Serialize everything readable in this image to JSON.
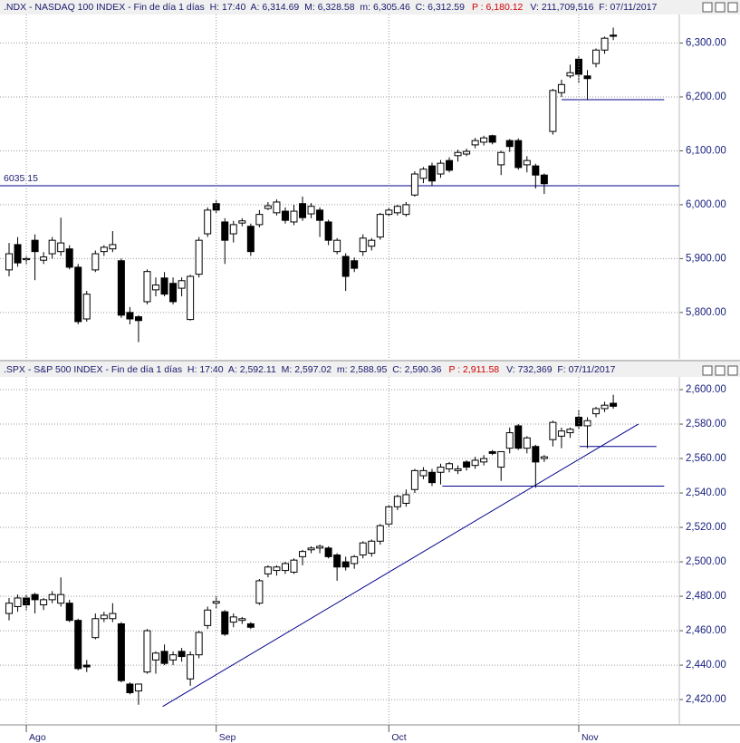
{
  "chart_data": [
    {
      "type": "candlestick",
      "header": {
        "left": ".NDX - NASDAQ 100 INDEX - Fin de día 1 días  H: 17:40  A: 6,314.69  M: 6,328.58  m: 6,305.46  C: 6,312.59",
        "prev": "P : 6,180.12",
        "right": "V: 211,709,516  F: 07/11/2017"
      },
      "ohlc": [
        [
          5879,
          5929,
          5867,
          5909
        ],
        [
          5926,
          5940,
          5885,
          5892
        ],
        [
          5898,
          5905,
          5890,
          5900
        ],
        [
          5934,
          5945,
          5860,
          5913
        ],
        [
          5897,
          5912,
          5890,
          5903
        ],
        [
          5909,
          5940,
          5900,
          5934
        ],
        [
          5913,
          5976,
          5905,
          5929
        ],
        [
          5918,
          5925,
          5880,
          5884
        ],
        [
          5884,
          5890,
          5778,
          5783
        ],
        [
          5788,
          5840,
          5783,
          5834
        ],
        [
          5879,
          5915,
          5875,
          5909
        ],
        [
          5913,
          5925,
          5905,
          5921
        ],
        [
          5918,
          5951,
          5912,
          5926
        ],
        [
          5896,
          5900,
          5790,
          5795
        ],
        [
          5800,
          5810,
          5778,
          5788
        ],
        [
          5792,
          5795,
          5745,
          5785
        ],
        [
          5820,
          5880,
          5815,
          5876
        ],
        [
          5842,
          5865,
          5830,
          5851
        ],
        [
          5864,
          5875,
          5830,
          5834
        ],
        [
          5854,
          5865,
          5815,
          5820
        ],
        [
          5845,
          5865,
          5830,
          5859
        ],
        [
          5787,
          5870,
          5785,
          5867
        ],
        [
          5871,
          5940,
          5865,
          5934
        ],
        [
          5946,
          5995,
          5940,
          5990
        ],
        [
          6002,
          6008,
          5985,
          5990
        ],
        [
          5968,
          5975,
          5890,
          5934
        ],
        [
          5946,
          5970,
          5930,
          5963
        ],
        [
          5966,
          5975,
          5960,
          5970
        ],
        [
          5960,
          5965,
          5905,
          5913
        ],
        [
          5963,
          5990,
          5958,
          5982
        ],
        [
          5993,
          6005,
          5990,
          5998
        ],
        [
          5985,
          6010,
          5980,
          6005
        ],
        [
          5988,
          5995,
          5965,
          5971
        ],
        [
          5968,
          6000,
          5962,
          5988
        ],
        [
          6002,
          6015,
          5970,
          5976
        ],
        [
          5983,
          6003,
          5975,
          5997
        ],
        [
          5990,
          5995,
          5940,
          5971
        ],
        [
          5968,
          5972,
          5925,
          5934
        ],
        [
          5913,
          5938,
          5908,
          5934
        ],
        [
          5904,
          5910,
          5840,
          5867
        ],
        [
          5896,
          5902,
          5875,
          5882
        ],
        [
          5913,
          5945,
          5905,
          5938
        ],
        [
          5923,
          5938,
          5915,
          5934
        ],
        [
          5940,
          5985,
          5935,
          5982
        ],
        [
          5982,
          5995,
          5978,
          5990
        ],
        [
          5985,
          6000,
          5980,
          5997
        ],
        [
          5982,
          6005,
          5978,
          6000
        ],
        [
          6018,
          6062,
          6015,
          6057
        ],
        [
          6049,
          6070,
          6040,
          6066
        ],
        [
          6072,
          6078,
          6035,
          6044
        ],
        [
          6057,
          6083,
          6050,
          6077
        ],
        [
          6082,
          6088,
          6060,
          6064
        ],
        [
          6091,
          6102,
          6080,
          6097
        ],
        [
          6094,
          6104,
          6090,
          6099
        ],
        [
          6111,
          6124,
          6105,
          6119
        ],
        [
          6116,
          6128,
          6110,
          6124
        ],
        [
          6128,
          6130,
          6112,
          6116
        ],
        [
          6074,
          6100,
          6055,
          6097
        ],
        [
          6119,
          6122,
          6098,
          6108
        ],
        [
          6119,
          6123,
          6065,
          6069
        ],
        [
          6074,
          6090,
          6060,
          6082
        ],
        [
          6072,
          6076,
          6030,
          6055
        ],
        [
          6055,
          6058,
          6020,
          6039
        ],
        [
          6136,
          6215,
          6130,
          6212
        ],
        [
          6208,
          6232,
          6200,
          6223
        ],
        [
          6239,
          6260,
          6235,
          6245
        ],
        [
          6270,
          6275,
          6225,
          6242
        ],
        [
          6239,
          6250,
          6195,
          6234
        ],
        [
          6262,
          6290,
          6255,
          6287
        ],
        [
          6287,
          6312,
          6280,
          6309
        ],
        [
          6314.69,
          6328.58,
          6305.46,
          6312.59
        ]
      ],
      "up_color": "#ffffff",
      "down_color": "#000000",
      "line_color": "#00008b",
      "ylim": [
        5714,
        6353
      ],
      "yticks": [
        {
          "value": 5800,
          "label": "5,800.00"
        },
        {
          "value": 5900,
          "label": "5,900.00"
        },
        {
          "value": 6000,
          "label": "6,000.00"
        },
        {
          "value": 6100,
          "label": "6,100.00"
        },
        {
          "value": 6200,
          "label": "6,200.00"
        },
        {
          "value": 6300,
          "label": "6,300.00"
        }
      ],
      "grid": true,
      "hlines": [
        6035.15
      ],
      "segments": [
        {
          "x": [
            64,
            75.9
          ],
          "y": [
            6195,
            6195
          ]
        }
      ]
    },
    {
      "type": "candlestick",
      "header": {
        "left": ".SPX - S&P 500 INDEX - Fin de día 1 días  H: 17:40  A: 2,592.11  M: 2,597.02  m: 2,588.95  C: 2,590.36",
        "prev": "P : 2,911.58",
        "right": "V: 732,369  F: 07/11/2017"
      },
      "ohlc": [
        [
          2470,
          2479,
          2466,
          2476
        ],
        [
          2474,
          2481,
          2471,
          2479
        ],
        [
          2479,
          2481,
          2472,
          2475
        ],
        [
          2481,
          2482,
          2470,
          2478
        ],
        [
          2475,
          2479,
          2472,
          2478
        ],
        [
          2478,
          2483,
          2476,
          2481
        ],
        [
          2476,
          2491,
          2474,
          2481
        ],
        [
          2476,
          2478,
          2465,
          2466
        ],
        [
          2466,
          2467,
          2437,
          2438
        ],
        [
          2440,
          2443,
          2436,
          2439
        ],
        [
          2456,
          2470,
          2455,
          2467
        ],
        [
          2467,
          2471,
          2465,
          2469
        ],
        [
          2467,
          2476,
          2465,
          2470
        ],
        [
          2464,
          2465,
          2430,
          2431
        ],
        [
          2429,
          2430,
          2423,
          2424
        ],
        [
          2425,
          2429,
          2417,
          2429
        ],
        [
          2436,
          2461,
          2435,
          2460
        ],
        [
          2443,
          2448,
          2435,
          2447
        ],
        [
          2448,
          2452,
          2440,
          2441
        ],
        [
          2443,
          2448,
          2440,
          2446
        ],
        [
          2448,
          2450,
          2442,
          2445
        ],
        [
          2432,
          2448,
          2428,
          2446
        ],
        [
          2446,
          2460,
          2444,
          2459
        ],
        [
          2463,
          2474,
          2461,
          2472
        ],
        [
          2476,
          2480,
          2473,
          2477
        ],
        [
          2471,
          2472,
          2457,
          2458
        ],
        [
          2465,
          2470,
          2462,
          2468
        ],
        [
          2466,
          2468,
          2464,
          2467
        ],
        [
          2464,
          2465,
          2461,
          2462
        ],
        [
          2476,
          2490,
          2475,
          2489
        ],
        [
          2493,
          2498,
          2491,
          2497
        ],
        [
          2495,
          2498,
          2492,
          2497
        ],
        [
          2495,
          2500,
          2493,
          2499
        ],
        [
          2494,
          2502,
          2493,
          2501
        ],
        [
          2503,
          2507,
          2498,
          2506
        ],
        [
          2507,
          2509,
          2505,
          2508
        ],
        [
          2508,
          2510,
          2505,
          2509
        ],
        [
          2508,
          2509,
          2502,
          2503
        ],
        [
          2504,
          2505,
          2489,
          2497
        ],
        [
          2500,
          2503,
          2495,
          2497
        ],
        [
          2499,
          2504,
          2496,
          2503
        ],
        [
          2504,
          2512,
          2502,
          2511
        ],
        [
          2505,
          2513,
          2503,
          2512
        ],
        [
          2512,
          2522,
          2510,
          2521
        ],
        [
          2522,
          2533,
          2520,
          2532
        ],
        [
          2532,
          2539,
          2530,
          2538
        ],
        [
          2534,
          2542,
          2532,
          2539
        ],
        [
          2542,
          2554,
          2540,
          2553
        ],
        [
          2550,
          2555,
          2548,
          2553
        ],
        [
          2552,
          2554,
          2544,
          2546
        ],
        [
          2552,
          2557,
          2545,
          2555
        ],
        [
          2554,
          2558,
          2552,
          2557
        ],
        [
          2553,
          2556,
          2551,
          2554
        ],
        [
          2558,
          2559,
          2553,
          2555
        ],
        [
          2556,
          2561,
          2554,
          2559
        ],
        [
          2558,
          2562,
          2556,
          2560
        ],
        [
          2564,
          2565,
          2562,
          2563
        ],
        [
          2555,
          2564,
          2547,
          2564
        ],
        [
          2566,
          2578,
          2563,
          2575
        ],
        [
          2579,
          2580,
          2565,
          2566
        ],
        [
          2566,
          2573,
          2563,
          2572
        ],
        [
          2567,
          2568,
          2543,
          2558
        ],
        [
          2560,
          2562,
          2558,
          2561
        ],
        [
          2571,
          2582,
          2567,
          2581
        ],
        [
          2573,
          2578,
          2566,
          2576
        ],
        [
          2575,
          2578,
          2572,
          2577
        ],
        [
          2584,
          2588,
          2577,
          2579
        ],
        [
          2579,
          2584,
          2566,
          2582
        ],
        [
          2586,
          2590,
          2584,
          2589
        ],
        [
          2589,
          2593,
          2587,
          2591
        ],
        [
          2592.11,
          2597.02,
          2588.95,
          2590.36
        ]
      ],
      "up_color": "#ffffff",
      "down_color": "#000000",
      "line_color": "#00008b",
      "ylim": [
        2405.3,
        2607.4
      ],
      "yticks": [
        {
          "value": 2420,
          "label": "2,420.00"
        },
        {
          "value": 2440,
          "label": "2,440.00"
        },
        {
          "value": 2460,
          "label": "2,460.00"
        },
        {
          "value": 2480,
          "label": "2,480.00"
        },
        {
          "value": 2500,
          "label": "2,500.00"
        },
        {
          "value": 2520,
          "label": "2,520.00"
        },
        {
          "value": 2540,
          "label": "2,540.00"
        },
        {
          "value": 2560,
          "label": "2,560.00"
        },
        {
          "value": 2580,
          "label": "2,580.00"
        },
        {
          "value": 2600,
          "label": "2,600.00"
        }
      ],
      "grid": true,
      "categories": [
        null,
        null,
        "Ago",
        null,
        null,
        null,
        null,
        null,
        null,
        null,
        null,
        null,
        null,
        null,
        null,
        null,
        null,
        null,
        null,
        null,
        null,
        null,
        null,
        null,
        "Sep",
        null,
        null,
        null,
        null,
        null,
        null,
        null,
        null,
        null,
        null,
        null,
        null,
        null,
        null,
        null,
        null,
        null,
        null,
        null,
        "Oct",
        null,
        null,
        null,
        null,
        null,
        null,
        null,
        null,
        null,
        null,
        null,
        null,
        null,
        null,
        null,
        null,
        null,
        null,
        null,
        null,
        null,
        "Nov",
        null,
        null,
        null,
        null
      ],
      "segments": [
        {
          "x": [
            17.8,
            72.9
          ],
          "y": [
            2416,
            2580
          ]
        },
        {
          "x": [
            66.1,
            75
          ],
          "y": [
            2567,
            2567
          ]
        },
        {
          "x": [
            50.2,
            75.9
          ],
          "y": [
            2544,
            2544
          ]
        }
      ]
    }
  ]
}
